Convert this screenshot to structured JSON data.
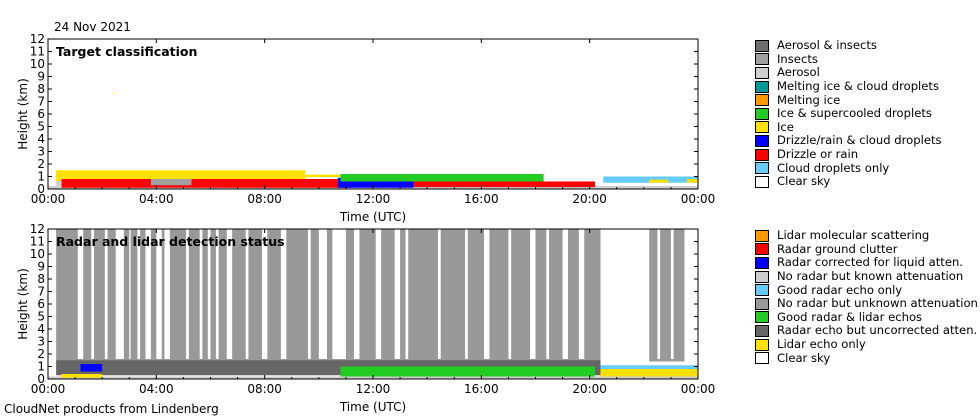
{
  "header": {
    "date": "24 Nov 2021"
  },
  "footer": {
    "text": "CloudNet products from Lindenberg"
  },
  "chart_data": [
    {
      "type": "heatmap",
      "title": "Target classification",
      "xlabel": "Time (UTC)",
      "ylabel": "Height (km)",
      "xlim": [
        "00:00",
        "24:00"
      ],
      "ylim": [
        0,
        12
      ],
      "xticks": [
        "00:00",
        "04:00",
        "08:00",
        "12:00",
        "16:00",
        "20:00",
        "00:00"
      ],
      "yticks": [
        "0",
        "1",
        "2",
        "3",
        "4",
        "5",
        "6",
        "7",
        "8",
        "9",
        "10",
        "11",
        "12"
      ],
      "legend": {
        "position": "right",
        "items": [
          {
            "label": "Aerosol & insects",
            "color": "#6e6e6e"
          },
          {
            "label": "Insects",
            "color": "#a0a0a0"
          },
          {
            "label": "Aerosol",
            "color": "#d0d0d0"
          },
          {
            "label": "Melting ice & cloud droplets",
            "color": "#009999"
          },
          {
            "label": "Melting ice",
            "color": "#ff9900"
          },
          {
            "label": "Ice & supercooled droplets",
            "color": "#22cc22"
          },
          {
            "label": "Ice",
            "color": "#ffe100"
          },
          {
            "label": "Drizzle/rain & cloud droplets",
            "color": "#0000ff"
          },
          {
            "label": "Drizzle or rain",
            "color": "#ff0000"
          },
          {
            "label": "Cloud droplets only",
            "color": "#66ccff"
          },
          {
            "label": "Clear sky",
            "color": "#ffffff"
          }
        ]
      },
      "regions": [
        {
          "class": "Aerosol",
          "t0": 0.0,
          "t1": 24.0,
          "h0": 0.0,
          "h1": 0.25
        },
        {
          "class": "Aerosol",
          "t0": 0.3,
          "t1": 4.5,
          "h0": 0.25,
          "h1": 0.7
        },
        {
          "class": "Ice",
          "t0": 0.3,
          "t1": 9.5,
          "h0": 0.65,
          "h1": 1.5
        },
        {
          "class": "Ice",
          "t0": 9.5,
          "t1": 18.2,
          "h0": 0.95,
          "h1": 1.15
        },
        {
          "class": "Drizzle or rain",
          "t0": 0.5,
          "t1": 11.2,
          "h0": 0.1,
          "h1": 0.8
        },
        {
          "class": "Drizzle or rain",
          "t0": 13.5,
          "t1": 20.2,
          "h0": 0.15,
          "h1": 0.6
        },
        {
          "class": "Drizzle/rain & cloud droplets",
          "t0": 10.7,
          "t1": 13.5,
          "h0": 0.1,
          "h1": 0.9
        },
        {
          "class": "Ice & supercooled droplets",
          "t0": 10.8,
          "t1": 18.3,
          "h0": 0.6,
          "h1": 1.2
        },
        {
          "class": "Insects",
          "t0": 3.8,
          "t1": 5.3,
          "h0": 0.3,
          "h1": 0.8
        },
        {
          "class": "Cloud droplets only",
          "t0": 20.5,
          "t1": 24.0,
          "h0": 0.5,
          "h1": 1.0
        },
        {
          "class": "Ice",
          "t0": 22.2,
          "t1": 22.9,
          "h0": 0.5,
          "h1": 0.75
        },
        {
          "class": "Ice",
          "t0": 23.6,
          "t1": 24.0,
          "h0": 0.5,
          "h1": 0.8
        },
        {
          "class": "Ice",
          "t0": 2.4,
          "t1": 2.45,
          "h0": 7.6,
          "h1": 7.7
        }
      ]
    },
    {
      "type": "heatmap",
      "title": "Radar and lidar detection status",
      "xlabel": "Time (UTC)",
      "ylabel": "Height (km)",
      "xlim": [
        "00:00",
        "24:00"
      ],
      "ylim": [
        0,
        12
      ],
      "xticks": [
        "00:00",
        "04:00",
        "08:00",
        "12:00",
        "16:00",
        "20:00",
        "00:00"
      ],
      "yticks": [
        "0",
        "1",
        "2",
        "3",
        "4",
        "5",
        "6",
        "7",
        "8",
        "9",
        "10",
        "11",
        "12"
      ],
      "legend": {
        "position": "right",
        "items": [
          {
            "label": "Lidar molecular scattering",
            "color": "#ff9900"
          },
          {
            "label": "Radar ground clutter",
            "color": "#ff0000"
          },
          {
            "label": "Radar corrected for liquid atten.",
            "color": "#0000ff"
          },
          {
            "label": "No radar but known attenuation",
            "color": "#cccccc"
          },
          {
            "label": "Good radar echo only",
            "color": "#66ccff"
          },
          {
            "label": "No radar but unknown attenuation",
            "color": "#999999"
          },
          {
            "label": "Good radar & lidar echos",
            "color": "#22cc22"
          },
          {
            "label": "Radar echo but uncorrected atten.",
            "color": "#666666"
          },
          {
            "label": "Lidar echo only",
            "color": "#ffe100"
          },
          {
            "label": "Clear sky",
            "color": "#ffffff"
          }
        ]
      },
      "regions": [
        {
          "class": "No radar but unknown attenuation",
          "t0": 0.3,
          "t1": 20.4,
          "h0": 1.4,
          "h1": 12.0
        },
        {
          "class": "No radar but unknown attenuation",
          "t0": 22.2,
          "t1": 23.5,
          "h0": 1.4,
          "h1": 12.0
        },
        {
          "class": "Radar echo but uncorrected atten.",
          "t0": 0.3,
          "t1": 20.4,
          "h0": 0.3,
          "h1": 1.5
        },
        {
          "class": "Good radar & lidar echos",
          "t0": 10.8,
          "t1": 20.2,
          "h0": 0.2,
          "h1": 1.0
        },
        {
          "class": "Good radar echo only",
          "t0": 20.4,
          "t1": 24.0,
          "h0": 0.8,
          "h1": 1.1
        },
        {
          "class": "Lidar echo only",
          "t0": 20.4,
          "t1": 24.0,
          "h0": 0.2,
          "h1": 0.8
        },
        {
          "class": "Radar corrected for liquid atten.",
          "t0": 1.2,
          "t1": 2.0,
          "h0": 0.6,
          "h1": 1.2
        },
        {
          "class": "No radar but known attenuation",
          "t0": 0.0,
          "t1": 24.0,
          "h0": 0.0,
          "h1": 0.2
        },
        {
          "class": "Lidar echo only",
          "t0": 0.5,
          "t1": 2.0,
          "h0": 0.1,
          "h1": 0.4
        }
      ],
      "clear_gaps_hours": [
        [
          1.1,
          1.3
        ],
        [
          1.6,
          1.7
        ],
        [
          2.1,
          2.2
        ],
        [
          2.5,
          2.8
        ],
        [
          3.0,
          3.05
        ],
        [
          3.3,
          3.4
        ],
        [
          3.6,
          3.8
        ],
        [
          4.0,
          4.2
        ],
        [
          4.3,
          4.5
        ],
        [
          5.1,
          5.2
        ],
        [
          5.6,
          5.7
        ],
        [
          5.9,
          6.0
        ],
        [
          6.2,
          6.3
        ],
        [
          6.6,
          6.8
        ],
        [
          7.3,
          7.4
        ],
        [
          7.9,
          8.1
        ],
        [
          8.6,
          8.8
        ],
        [
          9.6,
          9.7
        ],
        [
          10.0,
          10.3
        ],
        [
          10.5,
          11.0
        ],
        [
          11.3,
          11.5
        ],
        [
          12.1,
          12.3
        ],
        [
          12.8,
          13.0
        ],
        [
          13.2,
          13.3
        ],
        [
          14.4,
          14.5
        ],
        [
          15.4,
          15.5
        ],
        [
          16.1,
          16.3
        ],
        [
          17.0,
          17.1
        ],
        [
          17.8,
          18.0
        ],
        [
          18.4,
          18.5
        ],
        [
          19.0,
          19.2
        ],
        [
          19.6,
          19.8
        ],
        [
          22.5,
          22.6
        ],
        [
          23.0,
          23.1
        ]
      ]
    }
  ]
}
